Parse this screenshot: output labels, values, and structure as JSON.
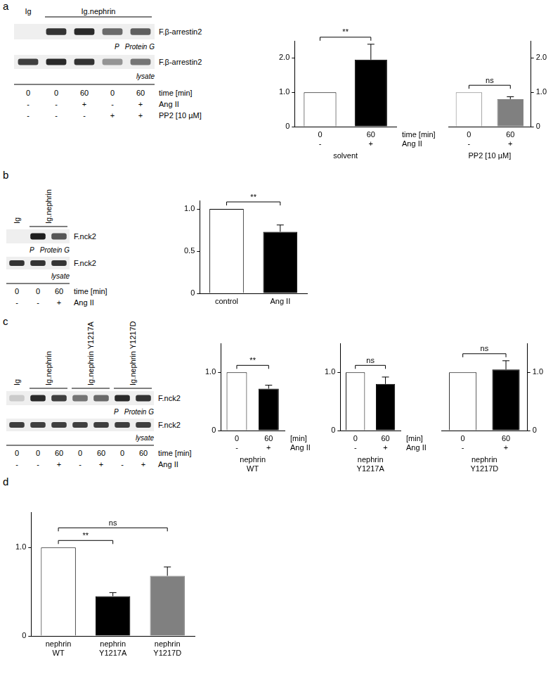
{
  "panels": [
    "a",
    "b",
    "c",
    "d"
  ],
  "blots": [
    {
      "headers": [
        {
          "label": "Ig",
          "lanes": [
            0,
            0
          ]
        },
        {
          "label": "Ig.nephrin",
          "lanes": [
            1,
            4
          ]
        }
      ],
      "strips": [
        {
          "label": "F.β-arrestin2",
          "inner_labels": [
            "P",
            "Protein G"
          ],
          "band_intensity": [
            0,
            0.85,
            0.9,
            0.6,
            0.65
          ]
        },
        {
          "label": "F.β-arrestin2",
          "inner_labels": [
            "lysate"
          ],
          "band_intensity": [
            0.8,
            0.9,
            0.85,
            0.4,
            0.55
          ]
        }
      ],
      "rows": [
        {
          "label": "time [min]",
          "values": [
            "0",
            "0",
            "60",
            "0",
            "60"
          ]
        },
        {
          "label": "Ang II",
          "values": [
            "-",
            "-",
            "+",
            "-",
            "+"
          ]
        },
        {
          "label": "PP2 [10 µM]",
          "values": [
            "-",
            "-",
            "-",
            "+",
            "+"
          ]
        }
      ]
    },
    {
      "headers": [
        {
          "label": "Ig",
          "lanes": [
            0,
            0
          ]
        },
        {
          "label": "Ig.nephrin",
          "lanes": [
            1,
            2
          ]
        }
      ],
      "strips": [
        {
          "label": "F.nck2",
          "inner_labels": [
            "P",
            "Protein G"
          ],
          "band_intensity": [
            0,
            0.95,
            0.7
          ]
        },
        {
          "label": "F.nck2",
          "inner_labels": [
            "lysate"
          ],
          "band_intensity": [
            0.85,
            0.85,
            0.85
          ]
        }
      ],
      "rows": [
        {
          "label": "time [min]",
          "values": [
            "0",
            "0",
            "60"
          ]
        },
        {
          "label": "Ang II",
          "values": [
            "-",
            "-",
            "+"
          ]
        }
      ]
    },
    {
      "headers": [
        {
          "label": "Ig",
          "lanes": [
            0,
            0
          ]
        },
        {
          "label": "Ig.nephrin",
          "lanes": [
            1,
            2
          ]
        },
        {
          "label": "Ig.nephrin Y1217A",
          "lanes": [
            3,
            4
          ]
        },
        {
          "label": "Ig.nephrin Y1217D",
          "lanes": [
            5,
            6
          ]
        }
      ],
      "strips": [
        {
          "label": "F.nck2",
          "inner_labels": [
            "P",
            "Protein G"
          ],
          "band_intensity": [
            0.15,
            0.9,
            0.8,
            0.55,
            0.6,
            0.9,
            0.85
          ]
        },
        {
          "label": "F.nck2",
          "inner_labels": [
            "lysate"
          ],
          "band_intensity": [
            0.8,
            0.8,
            0.8,
            0.8,
            0.8,
            0.8,
            0.8
          ]
        }
      ],
      "rows": [
        {
          "label": "time [min]",
          "values": [
            "0",
            "0",
            "60",
            "0",
            "60",
            "0",
            "60"
          ]
        },
        {
          "label": "Ang II",
          "values": [
            "-",
            "-",
            "+",
            "-",
            "+",
            "-",
            "+"
          ]
        }
      ]
    }
  ],
  "chart_data": [
    {
      "type": "bar",
      "categories": [
        [
          "0",
          "-"
        ],
        [
          "60",
          "+"
        ]
      ],
      "row_labels": [
        "time [min]",
        "Ang II"
      ],
      "xlabel": "solvent",
      "values": [
        1.0,
        1.95
      ],
      "errors": [
        0,
        0.45
      ],
      "colors": [
        "#ffffff",
        "#000000"
      ],
      "ylim": [
        0,
        2.5
      ],
      "yticks": [
        0,
        {
          "value": 1,
          "label": "1.0"
        },
        {
          "value": 2,
          "label": "2.0"
        }
      ],
      "grid": false,
      "significance": [
        {
          "from": 0,
          "to": 1,
          "label": "**"
        }
      ]
    },
    {
      "type": "bar",
      "categories": [
        [
          "0",
          "-"
        ],
        [
          "60",
          "+"
        ]
      ],
      "xlabel": "PP2 [10 µM]",
      "values": [
        1.0,
        0.8
      ],
      "errors": [
        0,
        0.07
      ],
      "colors": [
        "#ffffff",
        "#808080"
      ],
      "ylim": [
        0,
        2.5
      ],
      "yticks": [
        0,
        {
          "value": 1,
          "label": "1.0"
        },
        {
          "value": 2,
          "label": "2.0"
        }
      ],
      "grid": false,
      "significance": [
        {
          "from": 0,
          "to": 1,
          "label": "ns"
        }
      ]
    },
    {
      "type": "bar",
      "categories": [
        "control",
        "Ang II"
      ],
      "values": [
        1.0,
        0.73
      ],
      "errors": [
        0,
        0.08
      ],
      "colors": [
        "#ffffff",
        "#000000"
      ],
      "ylim": [
        0,
        1.1
      ],
      "yticks": [
        0,
        0.5,
        {
          "value": 1,
          "label": "1.0"
        }
      ],
      "grid": false,
      "significance": [
        {
          "from": 0,
          "to": 1,
          "label": "**"
        }
      ]
    },
    {
      "type": "bar",
      "categories": [
        [
          "0",
          "-"
        ],
        [
          "60",
          "+"
        ]
      ],
      "row_labels": [
        "[min]",
        "Ang II"
      ],
      "xlabel": [
        "nephrin",
        "WT"
      ],
      "values": [
        1.0,
        0.72
      ],
      "errors": [
        0,
        0.06
      ],
      "colors": [
        "#ffffff",
        "#000000"
      ],
      "ylim": [
        0,
        1.5
      ],
      "yticks": [
        0,
        {
          "value": 1,
          "label": "1.0"
        }
      ],
      "grid": false,
      "significance": [
        {
          "from": 0,
          "to": 1,
          "label": "**"
        }
      ]
    },
    {
      "type": "bar",
      "categories": [
        [
          "0",
          "-"
        ],
        [
          "60",
          "+"
        ]
      ],
      "row_labels": [
        "[min]",
        "Ang II"
      ],
      "xlabel": [
        "nephrin",
        "Y1217A"
      ],
      "values": [
        1.0,
        0.8
      ],
      "errors": [
        0,
        0.12
      ],
      "colors": [
        "#ffffff",
        "#000000"
      ],
      "ylim": [
        0,
        1.5
      ],
      "yticks": [
        0,
        {
          "value": 1,
          "label": "1.0"
        }
      ],
      "grid": false,
      "significance": [
        {
          "from": 0,
          "to": 1,
          "label": "ns"
        }
      ]
    },
    {
      "type": "bar",
      "categories": [
        [
          "0",
          "-"
        ],
        [
          "60",
          "+"
        ]
      ],
      "xlabel": [
        "nephrin",
        "Y1217D"
      ],
      "values": [
        1.0,
        1.05
      ],
      "errors": [
        0,
        0.15
      ],
      "colors": [
        "#ffffff",
        "#000000"
      ],
      "ylim": [
        0,
        1.5
      ],
      "yticks": [
        0,
        {
          "value": 1,
          "label": "1.0"
        }
      ],
      "grid": false,
      "significance": [
        {
          "from": 0,
          "to": 1,
          "label": "ns"
        }
      ]
    },
    {
      "type": "bar",
      "categories": [
        [
          "nephrin",
          "WT"
        ],
        [
          "nephrin",
          "Y1217A"
        ],
        [
          "nephrin",
          "Y1217D"
        ]
      ],
      "values": [
        1.0,
        0.45,
        0.68
      ],
      "errors": [
        0,
        0.04,
        0.1
      ],
      "colors": [
        "#ffffff",
        "#000000",
        "#808080"
      ],
      "ylim": [
        0,
        1.4
      ],
      "yticks": [
        0,
        {
          "value": 1,
          "label": "1.0"
        }
      ],
      "grid": false,
      "significance": [
        {
          "from": 0,
          "to": 1,
          "label": "**"
        },
        {
          "from": 0,
          "to": 2,
          "label": "ns"
        }
      ]
    }
  ]
}
